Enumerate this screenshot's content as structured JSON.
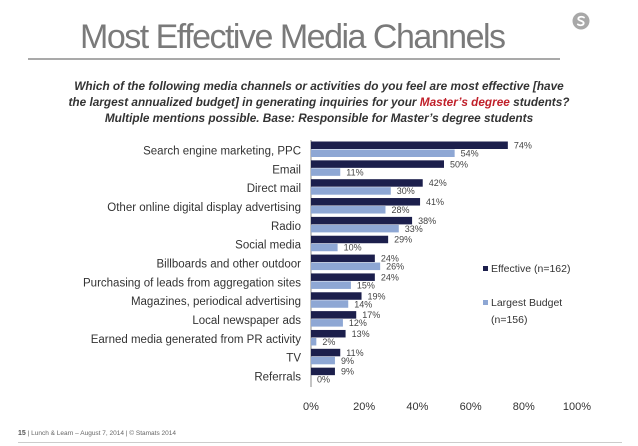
{
  "header": {
    "title": "Most Effective Media Channels",
    "question_line1": "Which of the following media channels or activities do you feel are most effective [have",
    "question_line2_before": "the largest annualized budget]  in generating inquiries for your ",
    "question_highlight": "Master’s degree",
    "question_line2_after": " students?",
    "question_line3": "Multiple mentions possible. Base: Responsible for Master’s degree students"
  },
  "footer": {
    "page_number": "15",
    "text": "  |  Lunch & Learn – August 7, 2014  |  © Stamats 2014"
  },
  "colors": {
    "effective": "#1c1f4c",
    "budget": "#8ea7d4",
    "title": "#7a7a7a",
    "highlight": "#c0202a"
  },
  "logo": {
    "icon": "s-circle-logo"
  },
  "chart_data": {
    "type": "bar",
    "orientation": "horizontal",
    "categories": [
      "Search engine marketing, PPC",
      "Email",
      "Direct mail",
      "Other online digital display advertising",
      "Radio",
      "Social media",
      "Billboards and other outdoor",
      "Purchasing of leads from aggregation sites",
      "Magazines, periodical advertising",
      "Local newspaper ads",
      "Earned media generated from PR activity",
      "TV",
      "Referrals"
    ],
    "series": [
      {
        "name": "Effective (n=162)",
        "values": [
          74,
          50,
          42,
          41,
          38,
          29,
          24,
          24,
          19,
          17,
          13,
          11,
          9
        ]
      },
      {
        "name": "Largest Budget (n=156)",
        "values": [
          54,
          11,
          30,
          28,
          33,
          10,
          26,
          15,
          14,
          12,
          2,
          9,
          0
        ]
      }
    ],
    "value_suffix": "%",
    "xlim": [
      0,
      100
    ],
    "xticks": [
      "0%",
      "20%",
      "40%",
      "60%",
      "80%",
      "100%"
    ],
    "legend": "right",
    "grid": false
  }
}
